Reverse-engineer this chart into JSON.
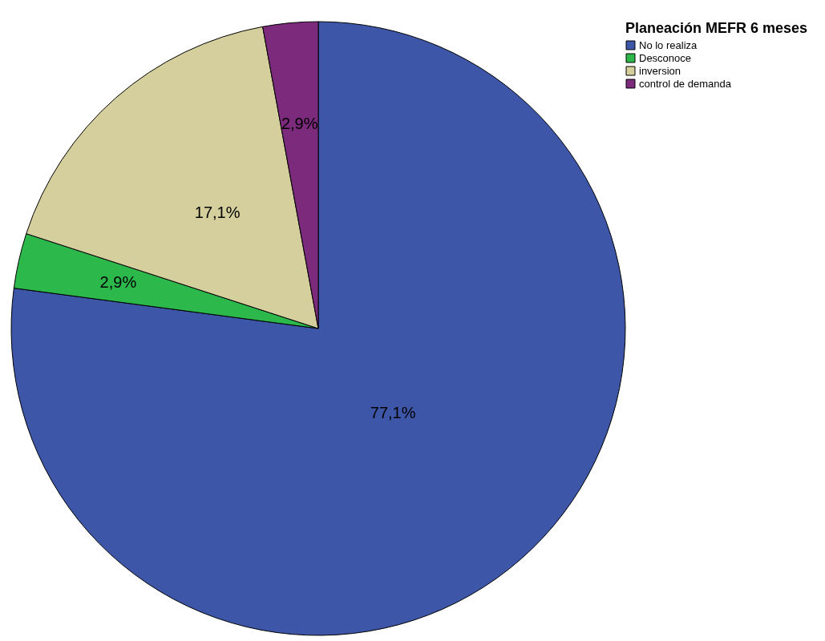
{
  "chart_data": {
    "type": "pie",
    "legend_title": "Planeación MEFR 6 meses",
    "legend": "top right",
    "categories": [
      "No lo realiza",
      "Desconoce",
      "inversion",
      "control de demanda"
    ],
    "values": [
      77.1,
      2.9,
      17.1,
      2.9
    ],
    "colors": [
      "#3d56a8",
      "#2db84c",
      "#d4cf9c",
      "#7c2a7c"
    ],
    "value_labels": [
      "77,1%",
      "2,9%",
      "17,1%",
      "2,9%"
    ]
  }
}
